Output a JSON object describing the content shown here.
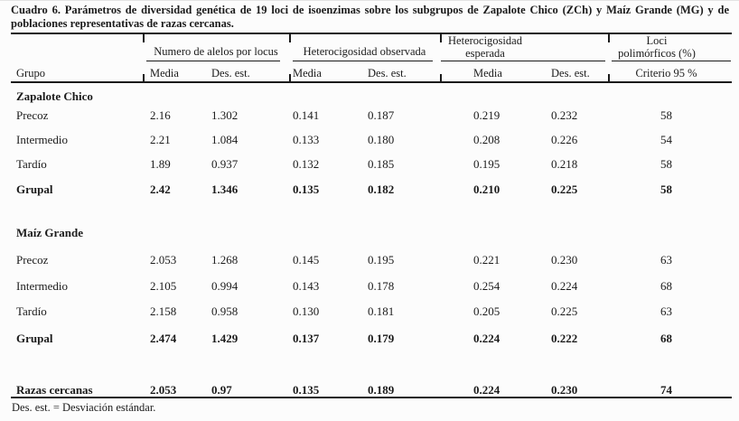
{
  "colors": {
    "ink": "#1b1b1b",
    "background": "#fcfcfc"
  },
  "document": {
    "title": "Cuadro 6. Parámetros de diversidad genética de 19 loci de isoenzimas sobre los subgrupos de Zapalote Chico (ZCh) y Maíz Grande (MG) y de poblaciones representativas de razas cercanas.",
    "title_lines": [
      "Cuadro 6. Parámetros de diversidad genética de 19 loci de isoenzimas sobre los subgrupos de Zapalote Chico (ZCh) y Maíz Grande (MG) y de",
      "poblaciones representativas de razas cercanas."
    ],
    "footnote": "Des. est.  =  Desviación estándar."
  },
  "table": {
    "row_header": "Grupo",
    "column_groups": [
      {
        "label": "Numero de alelos por locus",
        "columns": [
          "Media",
          "Des. est."
        ]
      },
      {
        "label": "Heterocigosidad observada",
        "columns": [
          "Media",
          "Des. est."
        ]
      },
      {
        "label": "Heterocigosidad esperada",
        "lines": [
          "Heterocigosidad",
          "esperada"
        ],
        "columns": [
          "Media",
          "Des. est."
        ]
      },
      {
        "label": "Loci polimórficos (%)",
        "lines": [
          "Loci",
          "polimórficos (%)"
        ],
        "columns": [
          "Criterio 95 %"
        ]
      }
    ],
    "sections": [
      {
        "label": "Zapalote Chico",
        "rows": [
          {
            "group": "Precoz",
            "bold": false,
            "values": [
              "2.16",
              "1.302",
              "0.141",
              "0.187",
              "0.219",
              "0.232",
              "58"
            ]
          },
          {
            "group": "Intermedio",
            "bold": false,
            "values": [
              "2.21",
              "1.084",
              "0.133",
              "0.180",
              "0.208",
              "0.226",
              "54"
            ]
          },
          {
            "group": "Tardío",
            "bold": false,
            "values": [
              "1.89",
              "0.937",
              "0.132",
              "0.185",
              "0.195",
              "0.218",
              "58"
            ]
          },
          {
            "group": "Grupal",
            "bold": true,
            "values": [
              "2.42",
              "1.346",
              "0.135",
              "0.182",
              "0.210",
              "0.225",
              "58"
            ]
          }
        ]
      },
      {
        "label": "Maíz Grande",
        "rows": [
          {
            "group": "Precoz",
            "bold": false,
            "values": [
              "2.053",
              "1.268",
              "0.145",
              "0.195",
              "0.221",
              "0.230",
              "63"
            ]
          },
          {
            "group": "Intermedio",
            "bold": false,
            "values": [
              "2.105",
              "0.994",
              "0.143",
              "0.178",
              "0.254",
              "0.224",
              "68"
            ]
          },
          {
            "group": "Tardío",
            "bold": false,
            "values": [
              "2.158",
              "0.958",
              "0.130",
              "0.181",
              "0.205",
              "0.225",
              "63"
            ]
          },
          {
            "group": "Grupal",
            "bold": true,
            "values": [
              "2.474",
              "1.429",
              "0.137",
              "0.179",
              "0.224",
              "0.222",
              "68"
            ]
          }
        ]
      },
      {
        "label": "",
        "rows": [
          {
            "group": "Razas cercanas",
            "bold": true,
            "values": [
              "2.053",
              "0.97",
              "0.135",
              "0.189",
              "0.224",
              "0.230",
              "74"
            ]
          }
        ]
      }
    ]
  }
}
